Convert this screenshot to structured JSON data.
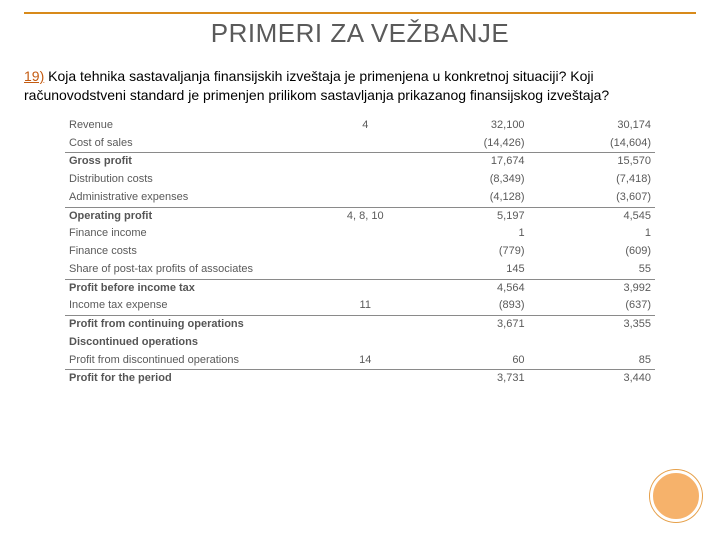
{
  "slide": {
    "title": "PRIMERI ZA VEŽBANJE",
    "question_number": "19)",
    "question_text": " Koja tehnika sastavaljanja finansijskih izveštaja je primenjena u konkretnoj situaciji? Koji računovodstveni standard je primenjen prilikom sastavljanja prikazanog finansijskog izveštaja?"
  },
  "table": {
    "rows": [
      {
        "label": "Revenue",
        "note": "4",
        "c1": "32,100",
        "c2": "30,174",
        "bold": false
      },
      {
        "label": "Cost of sales",
        "note": "",
        "c1": "(14,426)",
        "c2": "(14,604)",
        "bold": false
      },
      {
        "sep": true
      },
      {
        "label": "Gross profit",
        "note": "",
        "c1": "17,674",
        "c2": "15,570",
        "bold": true
      },
      {
        "label": "Distribution costs",
        "note": "",
        "c1": "(8,349)",
        "c2": "(7,418)",
        "bold": false
      },
      {
        "label": "Administrative expenses",
        "note": "",
        "c1": "(4,128)",
        "c2": "(3,607)",
        "bold": false
      },
      {
        "sep": true
      },
      {
        "label": "Operating profit",
        "note": "4, 8, 10",
        "c1": "5,197",
        "c2": "4,545",
        "bold": true
      },
      {
        "label": "Finance income",
        "note": "",
        "c1": "1",
        "c2": "1",
        "bold": false
      },
      {
        "label": "Finance costs",
        "note": "",
        "c1": "(779)",
        "c2": "(609)",
        "bold": false
      },
      {
        "label": "Share of post-tax profits of associates",
        "note": "",
        "c1": "145",
        "c2": "55",
        "bold": false
      },
      {
        "sep": true
      },
      {
        "label": "Profit before income tax",
        "note": "",
        "c1": "4,564",
        "c2": "3,992",
        "bold": true
      },
      {
        "label": "Income tax expense",
        "note": "11",
        "c1": "(893)",
        "c2": "(637)",
        "bold": false
      },
      {
        "sep": true
      },
      {
        "label": "Profit from continuing operations",
        "note": "",
        "c1": "3,671",
        "c2": "3,355",
        "bold": true
      },
      {
        "label": "Discontinued operations",
        "note": "",
        "c1": "",
        "c2": "",
        "bold": true
      },
      {
        "label": "Profit from discontinued operations",
        "note": "14",
        "c1": "60",
        "c2": "85",
        "bold": false
      },
      {
        "sep": true
      },
      {
        "label": "Profit for the period",
        "note": "",
        "c1": "3,731",
        "c2": "3,440",
        "bold": true
      }
    ]
  },
  "style": {
    "accent": "#d88a1a",
    "qnum_color": "#c45b11",
    "circle_fill": "#f6b26b"
  }
}
